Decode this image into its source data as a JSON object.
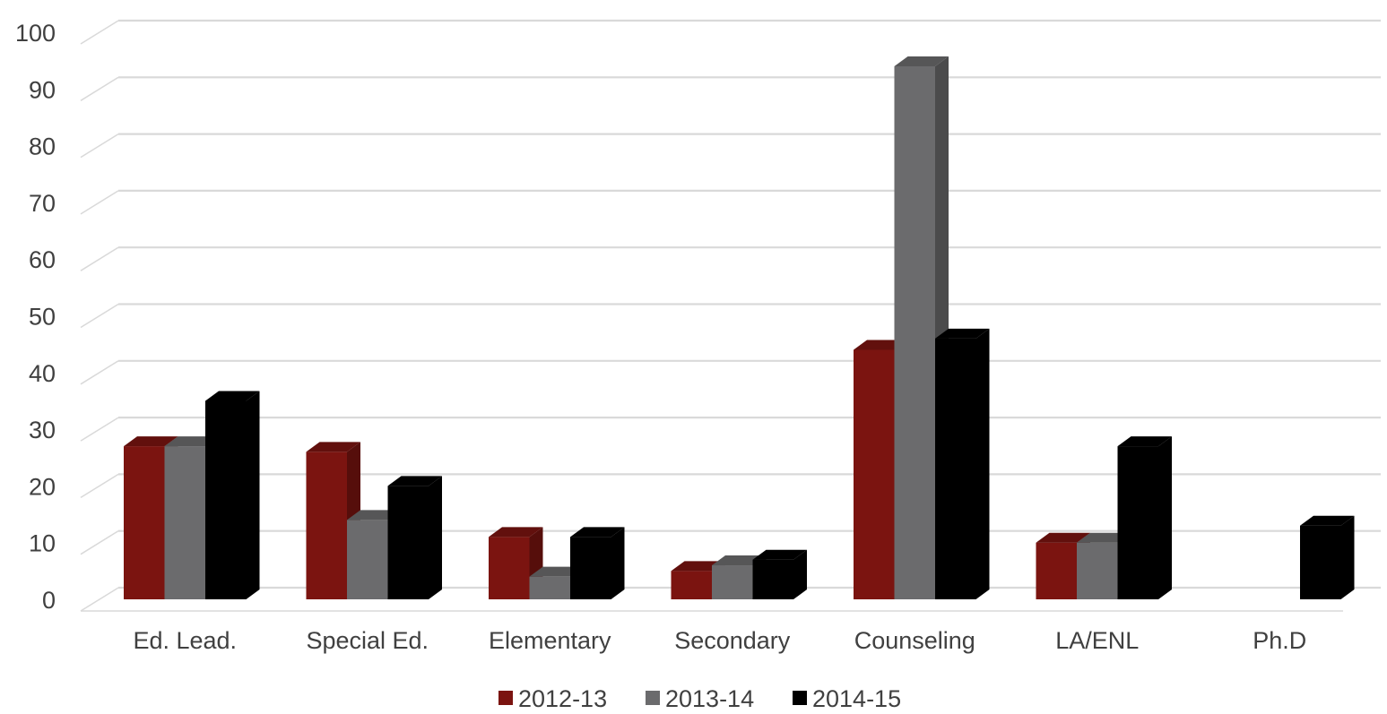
{
  "chart_data": {
    "type": "bar",
    "style": "3d-clustered-column",
    "title": "",
    "xlabel": "",
    "ylabel": "",
    "ylim": [
      0,
      100
    ],
    "yticks": [
      0,
      10,
      20,
      30,
      40,
      50,
      60,
      70,
      80,
      90,
      100
    ],
    "grid": true,
    "legend_position": "bottom",
    "categories": [
      "Ed. Lead.",
      "Special Ed.",
      "Elementary",
      "Secondary",
      "Counseling",
      "LA/ENL",
      "Ph.D"
    ],
    "series": [
      {
        "name": "2012-13",
        "color": "#7B1410",
        "values": [
          27,
          26,
          11,
          5,
          44,
          10,
          0
        ]
      },
      {
        "name": "2013-14",
        "color": "#6B6B6D",
        "values": [
          27,
          14,
          4,
          6,
          94,
          10,
          0
        ]
      },
      {
        "name": "2014-15",
        "color": "#000000",
        "values": [
          35,
          20,
          11,
          7,
          46,
          27,
          13
        ]
      }
    ]
  }
}
